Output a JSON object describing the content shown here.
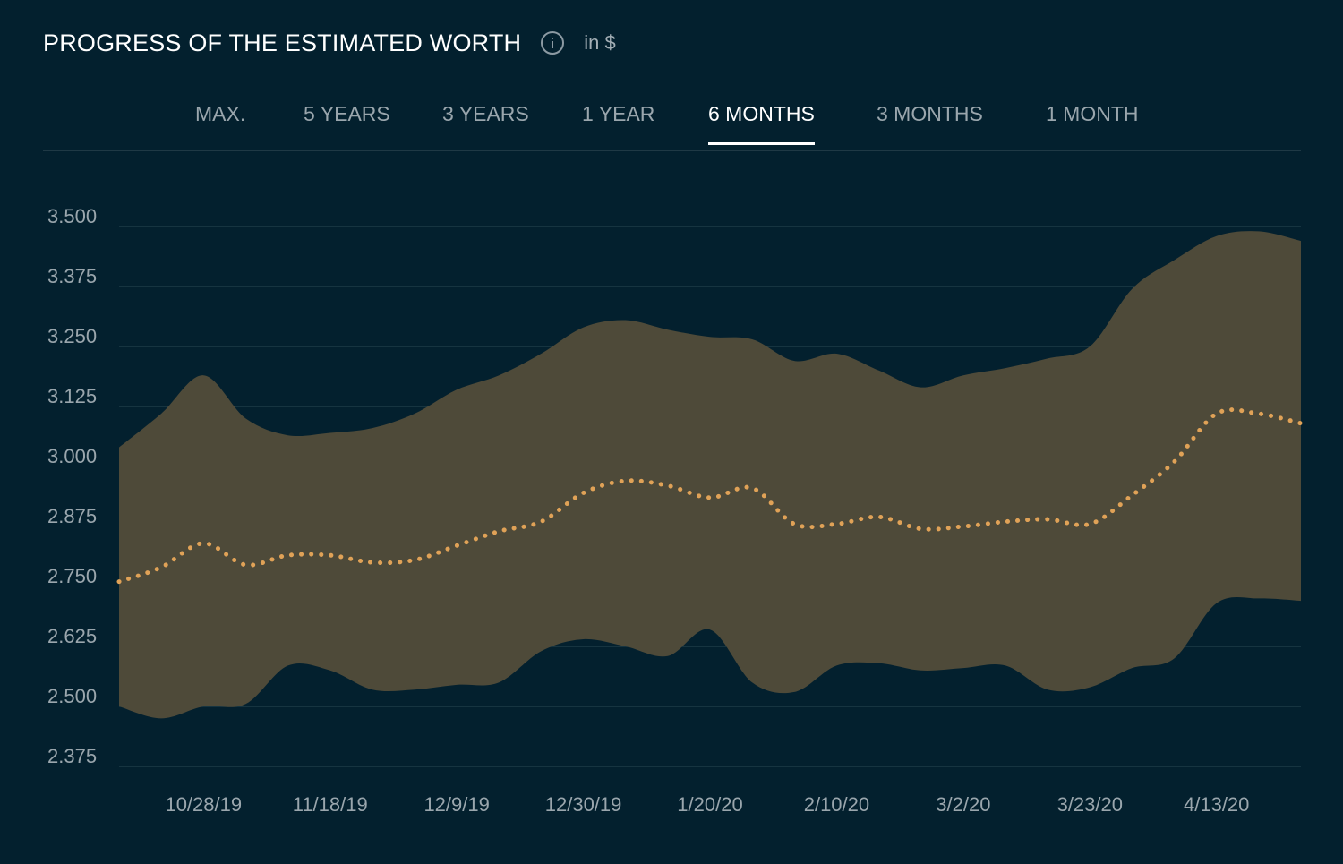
{
  "header": {
    "title": "PROGRESS OF THE ESTIMATED WORTH",
    "unit": "in $",
    "info_icon": "info-circle-icon"
  },
  "tabs": [
    {
      "label": "MAX.",
      "active": false
    },
    {
      "label": "5 YEARS",
      "active": false
    },
    {
      "label": "3 YEARS",
      "active": false
    },
    {
      "label": "1 YEAR",
      "active": false
    },
    {
      "label": "6 MONTHS",
      "active": true
    },
    {
      "label": "3 MONTHS",
      "active": false
    },
    {
      "label": "1 MONTH",
      "active": false
    }
  ],
  "colors": {
    "background": "#03202e",
    "band_fill": "#4e4a39",
    "median_line": "#e0a257",
    "grid": "#1d3a47",
    "tick_text": "#9aa6ad"
  },
  "chart_data": {
    "type": "area",
    "x_tick_labels": [
      "10/28/19",
      "11/18/19",
      "12/9/19",
      "12/30/19",
      "1/20/20",
      "2/10/20",
      "3/2/20",
      "3/23/20",
      "4/13/20"
    ],
    "y_tick_labels": [
      "3.500",
      "3.375",
      "3.250",
      "3.125",
      "3.000",
      "2.875",
      "2.750",
      "2.625",
      "2.500",
      "2.375"
    ],
    "ylim": [
      2.375,
      3.5
    ],
    "grid": true,
    "x": [
      "10/14/19",
      "10/21/19",
      "10/28/19",
      "11/4/19",
      "11/11/19",
      "11/18/19",
      "11/25/19",
      "12/2/19",
      "12/9/19",
      "12/16/19",
      "12/23/19",
      "12/30/19",
      "1/6/20",
      "1/13/20",
      "1/20/20",
      "1/27/20",
      "2/3/20",
      "2/10/20",
      "2/17/20",
      "2/24/20",
      "3/2/20",
      "3/9/20",
      "3/16/20",
      "3/23/20",
      "3/30/20",
      "4/6/20",
      "4/13/20",
      "4/20/20",
      "4/27/20"
    ],
    "series": [
      {
        "role": "upper",
        "values": [
          3.04,
          3.11,
          3.19,
          3.1,
          3.065,
          3.07,
          3.08,
          3.11,
          3.16,
          3.19,
          3.235,
          3.29,
          3.305,
          3.285,
          3.27,
          3.265,
          3.22,
          3.235,
          3.2,
          3.165,
          3.19,
          3.205,
          3.225,
          3.25,
          3.37,
          3.43,
          3.48,
          3.49,
          3.47
        ]
      },
      {
        "role": "median",
        "values": [
          2.76,
          2.79,
          2.84,
          2.795,
          2.815,
          2.815,
          2.8,
          2.805,
          2.835,
          2.865,
          2.885,
          2.945,
          2.97,
          2.96,
          2.935,
          2.955,
          2.88,
          2.88,
          2.895,
          2.87,
          2.875,
          2.885,
          2.89,
          2.88,
          2.94,
          3.01,
          3.11,
          3.11,
          3.09
        ]
      },
      {
        "role": "lower",
        "values": [
          2.5,
          2.475,
          2.5,
          2.505,
          2.585,
          2.575,
          2.535,
          2.535,
          2.545,
          2.55,
          2.615,
          2.64,
          2.625,
          2.605,
          2.66,
          2.55,
          2.53,
          2.585,
          2.59,
          2.575,
          2.58,
          2.585,
          2.535,
          2.54,
          2.58,
          2.6,
          2.715,
          2.725,
          2.72
        ]
      }
    ]
  }
}
